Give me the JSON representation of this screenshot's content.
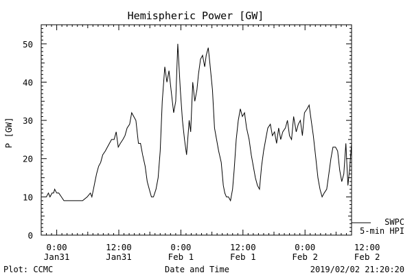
{
  "chart_data": {
    "type": "line",
    "title": "Hemispheric Power [GW]",
    "ylabel": "P [GW]",
    "xlabel": "Date and Time",
    "ylim": [
      0,
      55
    ],
    "xlim_hours": [
      -3,
      57
    ],
    "y_ticks": [
      "0",
      "10",
      "20",
      "30",
      "40",
      "50"
    ],
    "x_ticks": [
      {
        "line1": "0:00",
        "line2": "Jan31"
      },
      {
        "line1": "12:00",
        "line2": "Jan31"
      },
      {
        "line1": "0:00",
        "line2": "Feb 1"
      },
      {
        "line1": "12:00",
        "line2": "Feb 1"
      },
      {
        "line1": "0:00",
        "line2": "Feb 2"
      },
      {
        "line1": "12:00",
        "line2": "Feb 2"
      }
    ],
    "legend": {
      "line1": "SWPC",
      "line2": "5-min HPI",
      "placement": "right, outside bottom"
    },
    "series": [
      {
        "name": "SWPC 5-min HPI",
        "x_hours_from_jan31_0000": [
          -2.0,
          -1.6,
          -1.3,
          -0.9,
          -0.6,
          -0.4,
          0.0,
          0.4,
          0.9,
          1.4,
          1.8,
          2.3,
          2.8,
          3.6,
          4.2,
          5.0,
          5.9,
          6.5,
          6.8,
          7.1,
          7.4,
          7.7,
          8.1,
          8.5,
          8.9,
          9.4,
          9.8,
          10.2,
          10.6,
          11.1,
          11.5,
          11.9,
          12.3,
          12.8,
          13.2,
          13.6,
          14.1,
          14.5,
          14.9,
          15.3,
          15.8,
          16.2,
          16.6,
          17.1,
          17.5,
          17.9,
          18.3,
          18.7,
          19.2,
          19.6,
          20.0,
          20.4,
          20.9,
          21.3,
          21.7,
          22.1,
          22.6,
          23.0,
          23.4,
          23.9,
          24.3,
          24.7,
          25.1,
          25.6,
          25.9,
          26.3,
          26.7,
          27.1,
          27.4,
          27.8,
          28.2,
          28.6,
          28.9,
          29.3,
          29.6,
          30.1,
          30.5,
          30.9,
          31.3,
          31.8,
          32.2,
          32.5,
          32.8,
          33.2,
          33.6,
          34.0,
          34.3,
          34.7,
          35.1,
          35.5,
          35.9,
          36.3,
          36.7,
          37.2,
          37.6,
          38.0,
          38.4,
          38.8,
          39.2,
          39.6,
          40.0,
          40.4,
          40.8,
          41.3,
          41.7,
          42.1,
          42.5,
          42.9,
          43.3,
          43.7,
          44.2,
          44.6,
          45.0,
          45.4,
          45.8,
          46.3,
          46.7,
          47.1,
          47.5,
          47.9,
          48.4,
          48.8,
          49.2,
          49.6,
          50.1,
          50.5,
          50.9,
          51.3,
          51.7,
          52.2,
          52.6,
          53.0,
          53.4,
          53.9,
          54.3,
          54.7,
          55.1,
          55.5,
          55.9,
          56.3,
          56.6,
          57.0
        ],
        "values": [
          10,
          11,
          10,
          11,
          11,
          12,
          11,
          11,
          10,
          9,
          9,
          9,
          9,
          9,
          9,
          9,
          10,
          11,
          10,
          12,
          14,
          16,
          18,
          19,
          21,
          22,
          23,
          24,
          25,
          25,
          27,
          23,
          24,
          25,
          26,
          28,
          29,
          32,
          31,
          30,
          24,
          24,
          21,
          18,
          14,
          12,
          10,
          10,
          12,
          15,
          22,
          35,
          44,
          40,
          43,
          38,
          32,
          35,
          50,
          38,
          30,
          25,
          21,
          30,
          27,
          40,
          35,
          38,
          42,
          46,
          47,
          44,
          47,
          49,
          45,
          38,
          28,
          25,
          22,
          19,
          13,
          11,
          10,
          10,
          9,
          12,
          17,
          25,
          30,
          33,
          31,
          32,
          28,
          25,
          21,
          18,
          15,
          13,
          12,
          18,
          22,
          25,
          28,
          29,
          26,
          27,
          24,
          28,
          25,
          27,
          28,
          30,
          26,
          25,
          31,
          27,
          29,
          30,
          26,
          32,
          33,
          34,
          30,
          26,
          20,
          15,
          12,
          10,
          11,
          12,
          16,
          20,
          23,
          23,
          22,
          17,
          14,
          16,
          24,
          13,
          17,
          24
        ]
      }
    ],
    "footer": {
      "left": "Plot: CCMC",
      "timestamp": "2019/02/02 21:20:20"
    }
  }
}
